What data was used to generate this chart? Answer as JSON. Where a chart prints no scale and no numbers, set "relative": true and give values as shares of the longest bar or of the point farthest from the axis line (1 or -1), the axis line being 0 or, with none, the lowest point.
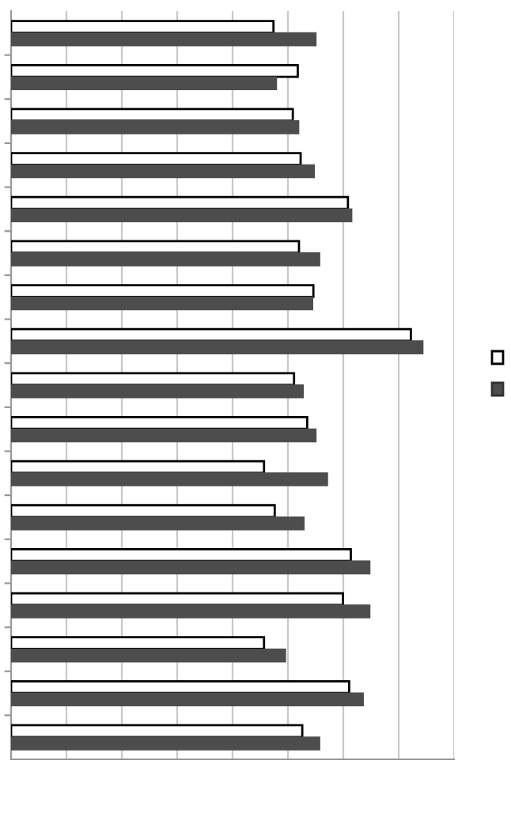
{
  "chart_data": {
    "type": "bar",
    "orientation": "horizontal",
    "relative": true,
    "grid": "x",
    "categories": [
      null,
      null,
      null,
      null,
      null,
      null,
      null,
      null,
      null,
      null,
      null,
      null,
      null,
      null,
      null,
      null,
      null
    ],
    "series": [
      {
        "color": "#ffffff",
        "values": [
          0.638,
          0.697,
          0.685,
          0.704,
          0.819,
          0.7,
          0.735,
          0.972,
          0.688,
          0.72,
          0.615,
          0.641,
          0.826,
          0.807,
          0.615,
          0.822,
          0.708
        ]
      },
      {
        "color": "#4d4d4d",
        "values": [
          0.74,
          0.644,
          0.698,
          0.736,
          0.827,
          0.749,
          0.732,
          1,
          0.709,
          0.74,
          0.768,
          0.711,
          0.871,
          0.871,
          0.666,
          0.855,
          0.749
        ]
      }
    ]
  }
}
